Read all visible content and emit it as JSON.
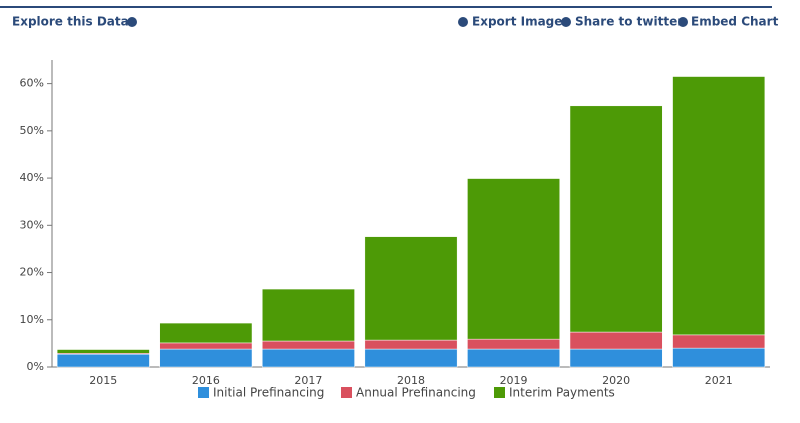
{
  "links": {
    "explore": "Explore this Data",
    "export": "Export Image",
    "share": "Share to twitter",
    "embed": "Embed Chart"
  },
  "chart_data": {
    "type": "stacked-bar",
    "categories": [
      "2015",
      "2016",
      "2017",
      "2018",
      "2019",
      "2020",
      "2021"
    ],
    "series": [
      {
        "name": "Initial Prefinancing",
        "color": "#2f8fdc",
        "values": [
          2.7,
          3.8,
          3.8,
          3.8,
          3.8,
          3.8,
          4.0
        ]
      },
      {
        "name": "Annual Prefinancing",
        "color": "#d9505e",
        "values": [
          0.2,
          1.3,
          1.7,
          1.9,
          2.1,
          3.6,
          2.8
        ]
      },
      {
        "name": "Interim Payments",
        "color": "#4d9a06",
        "values": [
          0.8,
          4.2,
          11.0,
          21.9,
          34.0,
          47.9,
          54.7
        ]
      }
    ],
    "ylim": [
      0,
      65
    ],
    "yticks": [
      {
        "value": 0,
        "label": "0%"
      },
      {
        "value": 10,
        "label": "10%"
      },
      {
        "value": 20,
        "label": "20%"
      },
      {
        "value": 30,
        "label": "30%"
      },
      {
        "value": 40,
        "label": "40%"
      },
      {
        "value": 50,
        "label": "50%"
      },
      {
        "value": 60,
        "label": "60%"
      }
    ],
    "legend": "bottom"
  }
}
